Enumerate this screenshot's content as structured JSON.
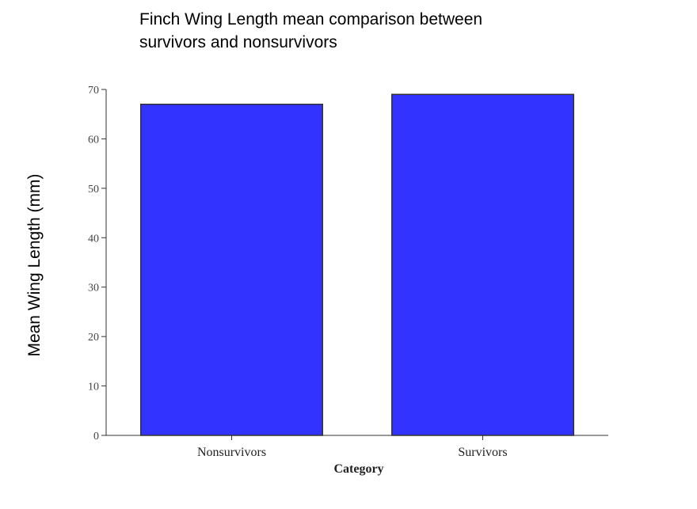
{
  "chart_data": {
    "type": "bar",
    "title": "Finch Wing Length mean comparison between survivors and nonsurvivors",
    "xlabel": "Category",
    "ylabel": "Mean Wing Length (mm)",
    "categories": [
      "Nonsurvivors",
      "Survivors"
    ],
    "values": [
      67,
      69
    ],
    "ylim": [
      0,
      70
    ],
    "yticks": [
      0,
      10,
      20,
      30,
      40,
      50,
      60,
      70
    ],
    "grid": false,
    "bar_color": "#3333ff",
    "bar_stroke": "#333333"
  }
}
